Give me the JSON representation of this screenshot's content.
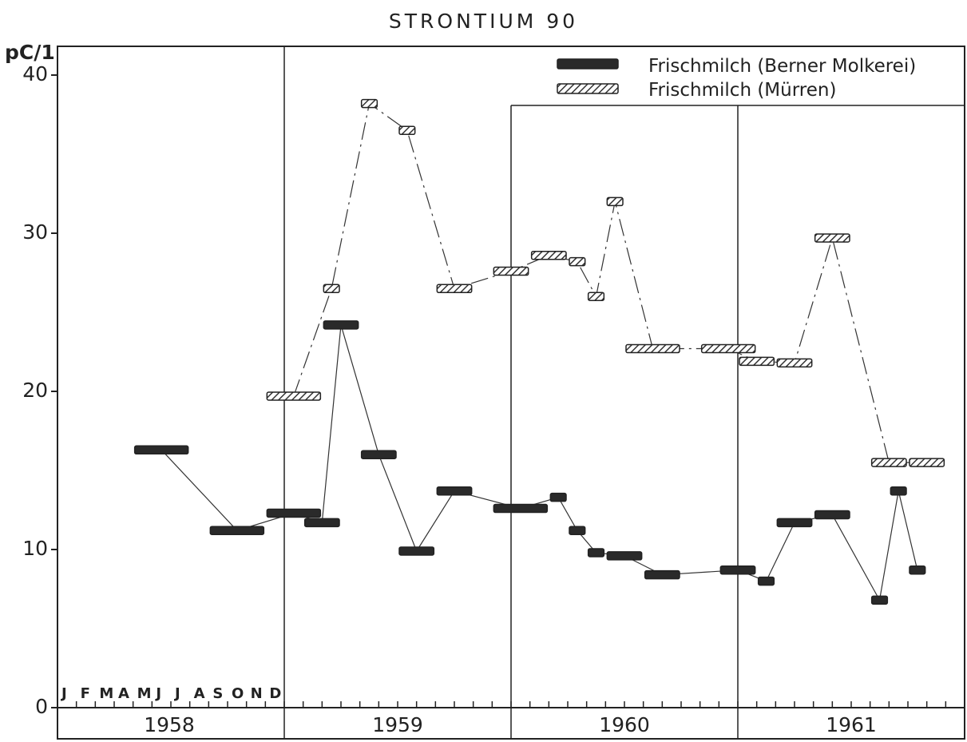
{
  "chart_data": {
    "type": "line",
    "title": "STRONTIUM 90",
    "ylabel": "pC/1",
    "ylim": [
      0,
      40
    ],
    "yticks": [
      0,
      10,
      20,
      30,
      40
    ],
    "year_labels": [
      "1958",
      "1959",
      "1960",
      "1961"
    ],
    "month_labels": [
      "J",
      "F",
      "M",
      "A",
      "M",
      "J",
      "J",
      "A",
      "S",
      "O",
      "N",
      "D"
    ],
    "legend_placement": "top-right",
    "series": [
      {
        "name": "Frischmilch  (Berner Molkerei)",
        "style": "solid",
        "points": [
          {
            "x0": "1958-05",
            "x1": "1958-07",
            "y": 16.3
          },
          {
            "x0": "1958-09",
            "x1": "1958-11",
            "y": 11.2
          },
          {
            "x0": "1958-12",
            "x1": "1959-02",
            "y": 12.3
          },
          {
            "x0": "1959-02",
            "x1": "1959-03",
            "y": 11.7
          },
          {
            "x0": "1959-03",
            "x1": "1959-04",
            "y": 24.2
          },
          {
            "x0": "1959-05",
            "x1": "1959-06",
            "y": 16.0
          },
          {
            "x0": "1959-07",
            "x1": "1959-08",
            "y": 9.9
          },
          {
            "x0": "1959-09",
            "x1": "1959-10",
            "y": 13.7
          },
          {
            "x0": "1959-12",
            "x1": "1960-02",
            "y": 12.6
          },
          {
            "x0": "1960-03",
            "x1": "1960-03",
            "y": 13.3
          },
          {
            "x0": "1960-04",
            "x1": "1960-04",
            "y": 11.2
          },
          {
            "x0": "1960-05",
            "x1": "1960-05",
            "y": 9.8
          },
          {
            "x0": "1960-06",
            "x1": "1960-07",
            "y": 9.6
          },
          {
            "x0": "1960-08",
            "x1": "1960-09",
            "y": 8.4
          },
          {
            "x0": "1960-12",
            "x1": "1961-01",
            "y": 8.7
          },
          {
            "x0": "1961-02",
            "x1": "1961-02",
            "y": 8.0
          },
          {
            "x0": "1961-03",
            "x1": "1961-04",
            "y": 11.7
          },
          {
            "x0": "1961-05",
            "x1": "1961-06",
            "y": 12.2
          },
          {
            "x0": "1961-08",
            "x1": "1961-08",
            "y": 6.8
          },
          {
            "x0": "1961-09",
            "x1": "1961-09",
            "y": 13.7
          },
          {
            "x0": "1961-10",
            "x1": "1961-10",
            "y": 8.7
          }
        ]
      },
      {
        "name": "Frischmilch  (Mürren)",
        "style": "hatched",
        "points": [
          {
            "x0": "1958-12",
            "x1": "1959-02",
            "y": 19.7
          },
          {
            "x0": "1959-03",
            "x1": "1959-03",
            "y": 26.5
          },
          {
            "x0": "1959-05",
            "x1": "1959-05",
            "y": 38.2
          },
          {
            "x0": "1959-07",
            "x1": "1959-07",
            "y": 36.5
          },
          {
            "x0": "1959-09",
            "x1": "1959-10",
            "y": 26.5
          },
          {
            "x0": "1959-12",
            "x1": "1960-01",
            "y": 27.6
          },
          {
            "x0": "1960-02",
            "x1": "1960-03",
            "y": 28.6
          },
          {
            "x0": "1960-04",
            "x1": "1960-04",
            "y": 28.2
          },
          {
            "x0": "1960-05",
            "x1": "1960-05",
            "y": 26.0
          },
          {
            "x0": "1960-06",
            "x1": "1960-06",
            "y": 32.0
          },
          {
            "x0": "1960-07",
            "x1": "1960-09",
            "y": 22.7
          },
          {
            "x0": "1960-11",
            "x1": "1961-01",
            "y": 22.7
          },
          {
            "x0": "1961-01",
            "x1": "1961-02",
            "y": 21.9
          },
          {
            "x0": "1961-03",
            "x1": "1961-04",
            "y": 21.8
          },
          {
            "x0": "1961-05",
            "x1": "1961-06",
            "y": 29.7
          },
          {
            "x0": "1961-08",
            "x1": "1961-09",
            "y": 15.5
          },
          {
            "x0": "1961-10",
            "x1": "1961-11",
            "y": 15.5
          }
        ]
      }
    ],
    "colors": {
      "ink": "#222222",
      "hatch": "#9a9a9a",
      "background": "#ffffff"
    }
  }
}
